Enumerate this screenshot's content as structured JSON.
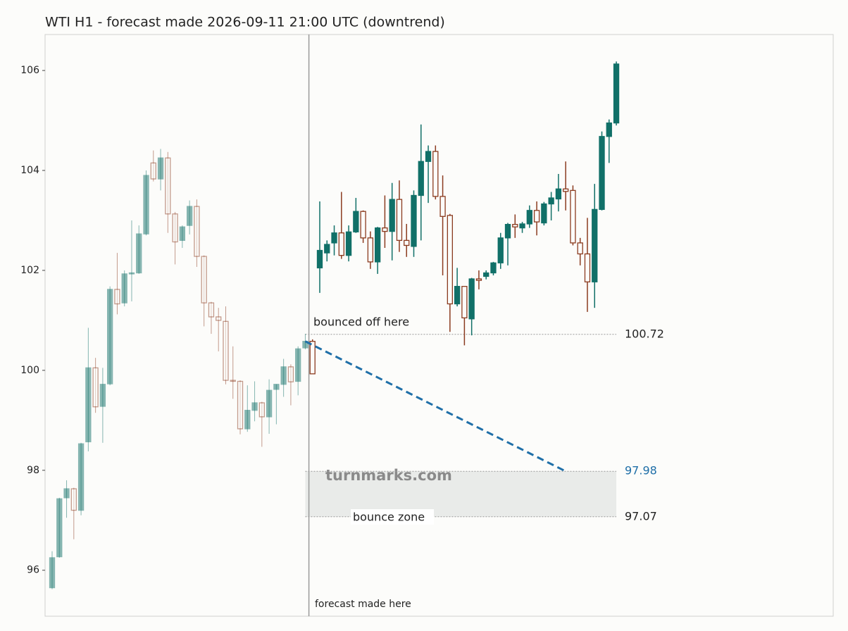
{
  "chart_data": {
    "type": "candlestick",
    "title": "WTI H1 - forecast made 2026-09-11 21:00 UTC (downtrend)",
    "ylim": [
      95.08,
      106.72
    ],
    "yticks": [
      96,
      98,
      100,
      102,
      104,
      106
    ],
    "up_color": "#117068",
    "down_color": "#8b3b1f",
    "history_opacity": 0.5,
    "history": {
      "open": [
        95.65,
        96.27,
        97.45,
        97.63,
        97.2,
        98.57,
        100.05,
        99.28,
        99.73,
        101.62,
        101.35,
        101.93,
        101.95,
        102.73,
        104.15,
        103.83,
        104.25,
        103.13,
        102.6,
        102.9,
        103.28,
        102.28,
        101.35,
        101.07,
        100.98,
        99.8,
        99.78,
        98.83,
        99.2,
        99.35,
        99.07,
        99.62,
        99.72,
        100.07,
        99.78,
        100.45
      ],
      "high": [
        96.38,
        97.45,
        97.8,
        97.65,
        98.55,
        100.85,
        100.25,
        100.05,
        101.68,
        102.35,
        102.0,
        103.0,
        102.9,
        104.0,
        104.4,
        104.43,
        104.37,
        103.17,
        102.9,
        103.4,
        103.42,
        102.3,
        101.37,
        101.25,
        101.28,
        100.48,
        99.8,
        99.7,
        99.78,
        99.37,
        99.82,
        99.72,
        100.23,
        100.12,
        100.48,
        100.73
      ],
      "low": [
        95.62,
        96.25,
        97.05,
        96.62,
        97.1,
        98.38,
        99.15,
        98.55,
        99.7,
        101.12,
        101.28,
        101.38,
        101.93,
        102.7,
        103.78,
        103.6,
        102.75,
        102.12,
        102.45,
        102.72,
        102.07,
        100.88,
        100.73,
        100.38,
        99.72,
        99.43,
        98.72,
        98.77,
        98.98,
        98.47,
        98.73,
        98.92,
        99.47,
        99.3,
        99.5,
        100.42
      ],
      "close": [
        96.25,
        97.43,
        97.63,
        97.2,
        98.53,
        100.05,
        99.27,
        99.72,
        101.62,
        101.33,
        101.93,
        101.95,
        102.73,
        103.9,
        103.83,
        104.25,
        103.13,
        102.57,
        102.87,
        103.28,
        102.28,
        101.35,
        101.07,
        101.0,
        99.8,
        99.78,
        98.83,
        99.2,
        99.35,
        99.07,
        99.6,
        99.72,
        100.07,
        99.77,
        100.43,
        100.58
      ]
    },
    "projection": {
      "open": [
        100.58,
        102.05,
        102.35,
        102.55,
        102.75,
        102.3,
        102.77,
        103.18,
        102.65,
        102.17,
        102.85,
        102.78,
        103.42,
        102.6,
        102.48,
        103.5,
        104.18,
        104.38,
        103.48,
        103.1,
        101.33,
        101.68,
        101.03,
        101.83,
        101.88,
        101.95,
        102.15,
        102.65,
        102.92,
        102.85,
        102.93,
        103.2,
        102.95,
        103.33,
        103.43,
        103.63,
        103.6,
        102.55,
        102.33,
        101.77,
        103.22,
        104.68,
        104.95
      ],
      "high": [
        100.62,
        103.38,
        102.6,
        102.9,
        103.57,
        102.9,
        103.45,
        103.2,
        102.78,
        102.87,
        103.5,
        103.75,
        103.8,
        102.93,
        103.6,
        104.92,
        104.5,
        104.5,
        103.9,
        103.13,
        102.05,
        101.68,
        101.85,
        102.0,
        102.0,
        102.17,
        102.75,
        102.95,
        103.12,
        102.97,
        103.3,
        103.38,
        103.37,
        103.57,
        103.93,
        104.18,
        103.7,
        102.65,
        103.05,
        103.73,
        104.78,
        105.02,
        106.18
      ],
      "low": [
        99.93,
        101.55,
        102.18,
        102.3,
        102.23,
        102.18,
        102.75,
        102.55,
        102.03,
        101.93,
        102.45,
        102.2,
        102.37,
        102.27,
        102.27,
        102.6,
        103.35,
        103.42,
        101.9,
        100.77,
        101.28,
        100.5,
        100.7,
        101.62,
        101.82,
        101.9,
        102.03,
        102.1,
        102.65,
        102.75,
        102.85,
        102.7,
        102.9,
        103.0,
        103.18,
        103.2,
        102.5,
        102.1,
        101.17,
        101.25,
        103.2,
        104.15,
        104.9
      ],
      "close": [
        99.93,
        102.4,
        102.52,
        102.75,
        102.3,
        102.77,
        103.18,
        102.65,
        102.17,
        102.85,
        102.78,
        103.42,
        102.6,
        102.5,
        103.5,
        104.18,
        104.38,
        103.48,
        103.08,
        101.33,
        101.68,
        101.05,
        101.83,
        101.8,
        101.95,
        102.15,
        102.65,
        102.92,
        102.87,
        102.93,
        103.2,
        102.97,
        103.33,
        103.45,
        103.63,
        103.58,
        102.55,
        102.33,
        101.77,
        103.22,
        104.68,
        104.95,
        106.13
      ]
    },
    "levels": {
      "bounce": 100.72,
      "target": 97.98,
      "zone_low": 97.07
    },
    "target_color": "#1f6fa8",
    "annotations": {
      "bounce": "bounced off here",
      "zone": "bounce zone",
      "forecast": "forecast made here",
      "watermark": "turnmarks.com"
    }
  }
}
